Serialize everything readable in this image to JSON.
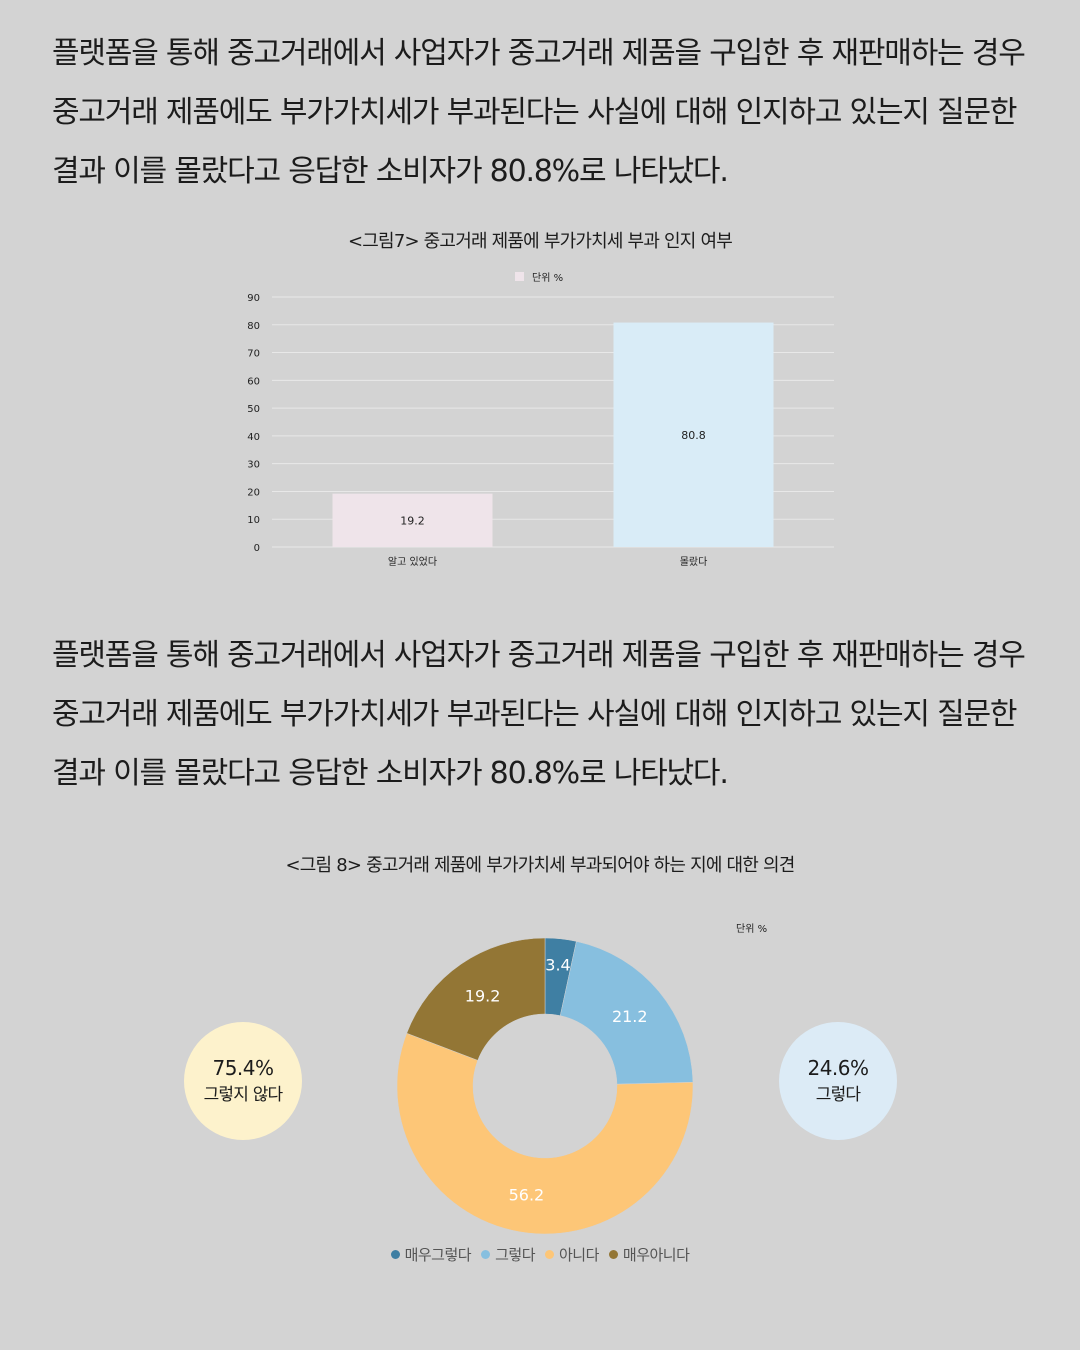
{
  "paragraphs": [
    {
      "lines": [
        "플랫폼을 통해 중고거래에서 사업자가 중고거래 제품을 구입한 후 재판매하는 경우",
        "중고거래 제품에도 부가가치세가 부과된다는 사실에 대해 인지하고 있는지 질문한",
        "결과 이를 몰랐다고 응답한 소비자가 80.8%로 나타났다."
      ]
    },
    {
      "lines": [
        "플랫폼을 통해 중고거래에서 사업자가 중고거래 제품을 구입한 후 재판매하는 경우",
        "중고거래 제품에도 부가가치세가 부과된다는 사실에 대해 인지하고 있는지 질문한",
        "결과 이를 몰랐다고 응답한 소비자가 80.8%로 나타났다."
      ]
    }
  ],
  "chart_data": [
    {
      "type": "bar",
      "title": "<그림7> 중고거래 제품에 부가가치세 부과 인지 여부",
      "legend": "단위 %",
      "legend_placement": "top-center",
      "legend_color": "#efe4ea",
      "categories": [
        "알고 있었다",
        "몰랐다"
      ],
      "values": [
        19.2,
        80.8
      ],
      "value_labels": [
        "19.2",
        "80.8"
      ],
      "bar_colors": [
        "#efe4ea",
        "#d9ecf7"
      ],
      "ylim": [
        0,
        90
      ],
      "yticks": [
        "0",
        "10",
        "20",
        "30",
        "40",
        "50",
        "60",
        "70",
        "80",
        "90"
      ],
      "grid": true
    },
    {
      "type": "pie",
      "style": "donut",
      "title": "<그림 8> 중고거래 제품에 부가가치세 부과되어야 하는 지에 대한 의견",
      "unit_label": "단위 %",
      "categories": [
        "매우그렇다",
        "그렇다",
        "아니다",
        "매우아니다"
      ],
      "values": [
        3.4,
        21.2,
        56.2,
        19.2
      ],
      "value_labels": [
        "3.4",
        "21.2",
        "56.2",
        "19.2"
      ],
      "colors": [
        "#3f7fa3",
        "#87bfdf",
        "#fdc677",
        "#937635"
      ],
      "legend_placement": "bottom-center",
      "summary": [
        {
          "percent": "75.4%",
          "label": "그렇지 않다",
          "color": "#fdf2cc"
        },
        {
          "percent": "24.6%",
          "label": "그렇다",
          "color": "#dcebf6"
        }
      ]
    }
  ]
}
